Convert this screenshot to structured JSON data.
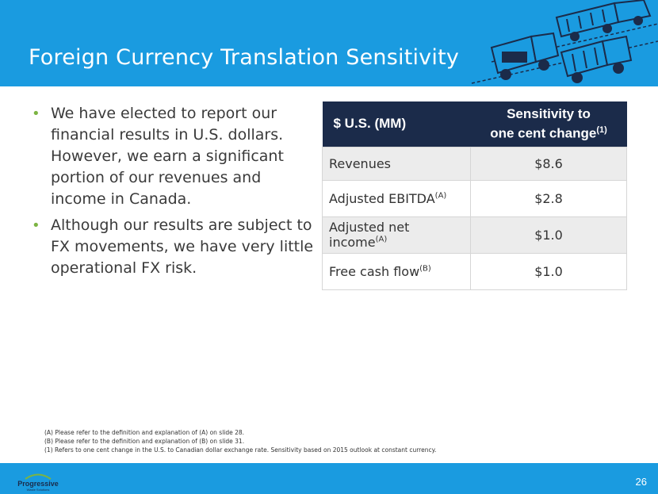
{
  "header": {
    "title": "Foreign Currency Translation Sensitivity",
    "illustration_icon": "garbage-truck-fleet-icon",
    "bg_color": "#1a9be0"
  },
  "bullets": [
    "We have elected to report our financial results in U.S. dollars. However, we earn a significant portion of our revenues and income in Canada.",
    "Although our results are subject to FX movements, we have very little operational FX risk."
  ],
  "table": {
    "header_col1": "$ U.S. (MM)",
    "header_col2_line1": "Sensitivity to",
    "header_col2_line2": "one cent change",
    "header_col2_sup": "(1)",
    "rows": [
      {
        "label": "Revenues",
        "sup": "",
        "value": "$8.6"
      },
      {
        "label": "Adjusted EBITDA",
        "sup": "(A)",
        "value": "$2.8"
      },
      {
        "label": "Adjusted net income",
        "sup": "(A)",
        "value": "$1.0"
      },
      {
        "label": "Free cash flow",
        "sup": "(B)",
        "value": "$1.0"
      }
    ],
    "header_color": "#1b2b4a"
  },
  "footnotes": [
    "(A) Please refer to the definition and explanation of (A) on slide 28.",
    "(B) Please refer to the definition and explanation of (B) on slide 31.",
    "(1)  Refers to one cent change in the U.S. to Canadian dollar exchange rate. Sensitivity based on 2015 outlook at constant currency."
  ],
  "footer": {
    "logo_text": "Progressive",
    "logo_subtext": "Waste Solutions",
    "page_number": "26"
  }
}
